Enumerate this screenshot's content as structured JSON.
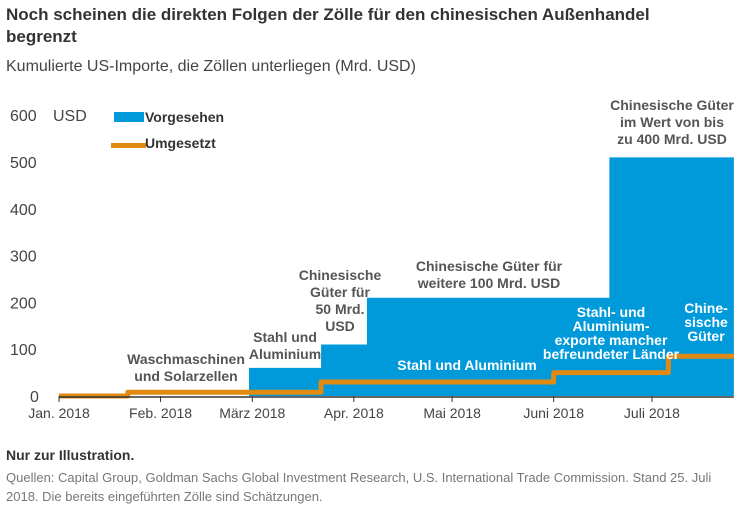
{
  "title": "Noch scheinen die direkten Folgen der Zölle für den chinesischen Außenhandel begrenzt",
  "subtitle": "Kumulierte US-Importe, die Zöllen unterliegen (Mrd. USD)",
  "note": "Nur zur Illustration.",
  "source": "Quellen: Capital Group, Goldman Sachs Global Investment Research, U.S. International Trade Commission. Stand 25. Juli 2018. Die bereits eingeführten Zölle sind Schätzungen.",
  "chart_data": {
    "type": "area",
    "ylabel": "USD",
    "ylim": [
      0,
      600
    ],
    "yticks": [
      "0",
      "100",
      "200",
      "300",
      "400",
      "500",
      "600"
    ],
    "xticks": [
      "Jan. 2018",
      "Feb. 2018",
      "März 2018",
      "Apr. 2018",
      "Mai 2018",
      "Juni 2018",
      "Juli 2018"
    ],
    "xtick_dates": [
      "2018-01-01",
      "2018-02-01",
      "2018-03-01",
      "2018-04-01",
      "2018-05-01",
      "2018-06-01",
      "2018-07-01"
    ],
    "xrange": [
      "2018-01-01",
      "2018-07-26"
    ],
    "legend_placement": "top-left",
    "series": [
      {
        "name": "Vorgesehen",
        "kind": "step-area",
        "color": "#009ADA",
        "steps": [
          {
            "from": "2018-01-01",
            "value": 0
          },
          {
            "from": "2018-02-28",
            "value": 60
          },
          {
            "from": "2018-03-22",
            "value": 110
          },
          {
            "from": "2018-04-05",
            "value": 210
          },
          {
            "from": "2018-06-18",
            "value": 510
          }
        ]
      },
      {
        "name": "Umgesetzt",
        "kind": "step-line",
        "color": "#E08A12",
        "steps": [
          {
            "from": "2018-01-01",
            "value": 0
          },
          {
            "from": "2018-01-22",
            "value": 8
          },
          {
            "from": "2018-03-22",
            "value": 30
          },
          {
            "from": "2018-06-01",
            "value": 50
          },
          {
            "from": "2018-07-06",
            "value": 85
          }
        ]
      }
    ],
    "annotations": [
      {
        "lines": [
          "Waschmaschinen",
          "und Solarzellen"
        ],
        "style": "dark"
      },
      {
        "lines": [
          "Stahl und",
          "Aluminium"
        ],
        "style": "dark"
      },
      {
        "lines": [
          "Chinesische",
          "Güter für",
          "50 Mrd.",
          "USD"
        ],
        "style": "dark"
      },
      {
        "lines": [
          "Chinesische Güter für",
          "weitere 100 Mrd. USD"
        ],
        "style": "dark"
      },
      {
        "lines": [
          "Chinesische Güter",
          "im Wert von bis",
          "zu 400 Mrd. USD"
        ],
        "style": "dark"
      },
      {
        "lines": [
          "Stahl und Aluminium"
        ],
        "style": "white"
      },
      {
        "lines": [
          "Stahl- und",
          "Aluminium-",
          "exporte mancher",
          "befreundeter Länder"
        ],
        "style": "white"
      },
      {
        "lines": [
          "Chine-",
          "sische",
          "Güter"
        ],
        "style": "white"
      }
    ]
  }
}
